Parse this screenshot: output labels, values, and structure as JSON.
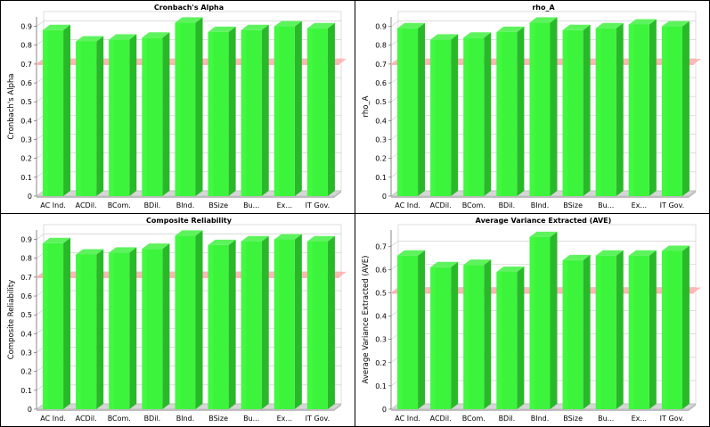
{
  "colors": {
    "bar_front": "#3cf43c",
    "bar_side": "#29b829",
    "bar_top": "#5df35d",
    "threshold": "#ffb0b0",
    "grid": "#c8c8c8",
    "floor": "#d6d6d6"
  },
  "chart_data": [
    {
      "type": "bar",
      "title": "Cronbach's Alpha",
      "ylabel": "Cronbach's Alpha",
      "xlabel": "",
      "categories": [
        "AC Ind.",
        "ACDil.",
        "BCom.",
        "BDil.",
        "BInd.",
        "BSize",
        "Bu...",
        "Ex...",
        "IT Gov."
      ],
      "values": [
        0.88,
        0.82,
        0.83,
        0.84,
        0.92,
        0.87,
        0.88,
        0.9,
        0.89
      ],
      "ylim": [
        0,
        0.95
      ],
      "yticks": [
        "0",
        "0.1",
        "0.2",
        "0.3",
        "0.4",
        "0.5",
        "0.6",
        "0.7",
        "0.8",
        "0.9"
      ],
      "ytick_values": [
        0,
        0.1,
        0.2,
        0.3,
        0.4,
        0.5,
        0.6,
        0.7,
        0.8,
        0.9
      ],
      "threshold": 0.7
    },
    {
      "type": "bar",
      "title": "rho_A",
      "ylabel": "rho_A",
      "xlabel": "",
      "categories": [
        "AC Ind.",
        "ACDil.",
        "BCom.",
        "BDil.",
        "BInd.",
        "BSize",
        "Bu...",
        "Ex...",
        "IT Gov."
      ],
      "values": [
        0.89,
        0.83,
        0.84,
        0.87,
        0.92,
        0.88,
        0.89,
        0.91,
        0.9
      ],
      "ylim": [
        0,
        0.95
      ],
      "yticks": [
        "0",
        "0.1",
        "0.2",
        "0.3",
        "0.4",
        "0.5",
        "0.6",
        "0.7",
        "0.8",
        "0.9"
      ],
      "ytick_values": [
        0,
        0.1,
        0.2,
        0.3,
        0.4,
        0.5,
        0.6,
        0.7,
        0.8,
        0.9
      ],
      "threshold": 0.7
    },
    {
      "type": "bar",
      "title": "Composite Reliability",
      "ylabel": "Composite Reliability",
      "xlabel": "",
      "categories": [
        "AC Ind.",
        "ACDil.",
        "BCom.",
        "BDil.",
        "BInd.",
        "BSize",
        "Bu...",
        "Ex...",
        "IT Gov."
      ],
      "values": [
        0.88,
        0.82,
        0.83,
        0.85,
        0.92,
        0.87,
        0.89,
        0.9,
        0.89
      ],
      "ylim": [
        0,
        0.95
      ],
      "yticks": [
        "0",
        "0.1",
        "0.2",
        "0.3",
        "0.4",
        "0.5",
        "0.6",
        "0.7",
        "0.8",
        "0.9"
      ],
      "ytick_values": [
        0,
        0.1,
        0.2,
        0.3,
        0.4,
        0.5,
        0.6,
        0.7,
        0.8,
        0.9
      ],
      "threshold": 0.7
    },
    {
      "type": "bar",
      "title": "Average Variance Extracted (AVE)",
      "ylabel": "Average Variance Extracted (AVE)",
      "xlabel": "",
      "categories": [
        "AC Ind.",
        "ACDil.",
        "BCom.",
        "BDil.",
        "BInd.",
        "BSize",
        "Bu...",
        "Ex...",
        "IT Gov."
      ],
      "values": [
        0.66,
        0.61,
        0.62,
        0.59,
        0.74,
        0.64,
        0.66,
        0.66,
        0.68
      ],
      "ylim": [
        0,
        0.77
      ],
      "yticks": [
        "0",
        "0.1",
        "0.2",
        "0.3",
        "0.4",
        "0.5",
        "0.6",
        "0.7"
      ],
      "ytick_values": [
        0,
        0.1,
        0.2,
        0.3,
        0.4,
        0.5,
        0.6,
        0.7
      ],
      "threshold": 0.5
    }
  ]
}
